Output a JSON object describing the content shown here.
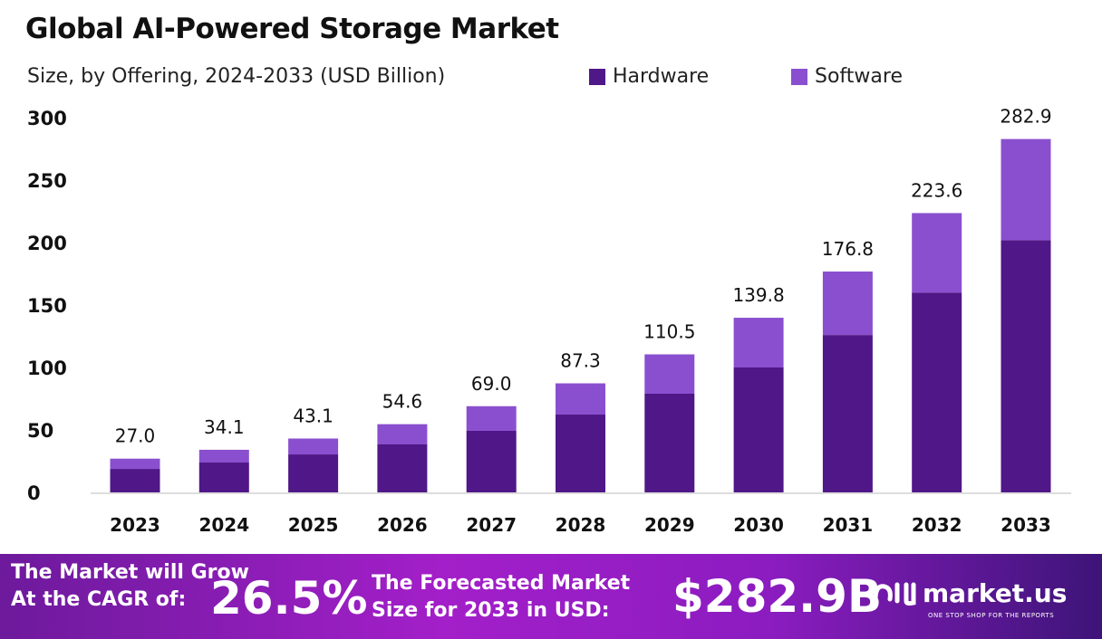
{
  "chart_data": {
    "type": "bar",
    "stacked": true,
    "title": "Global AI-Powered Storage Market",
    "subtitle": "Size, by Offering, 2024-2033 (USD Billion)",
    "categories": [
      "2023",
      "2024",
      "2025",
      "2026",
      "2027",
      "2028",
      "2029",
      "2030",
      "2031",
      "2032",
      "2033"
    ],
    "series": [
      {
        "name": "Hardware",
        "color": "#4f1787",
        "values": [
          18.8,
          23.9,
          30.4,
          38.4,
          49.3,
          62.3,
          79.0,
          100.0,
          126.0,
          160.0,
          202.0
        ]
      },
      {
        "name": "Software",
        "color": "#8a4fcf",
        "values": [
          8.2,
          10.2,
          12.7,
          16.2,
          19.7,
          25.0,
          31.5,
          39.8,
          50.8,
          63.6,
          80.9
        ]
      }
    ],
    "totals": [
      "27.0",
      "34.1",
      "43.1",
      "54.6",
      "69.0",
      "87.3",
      "110.5",
      "139.8",
      "176.8",
      "223.6",
      "282.9"
    ],
    "ylim": [
      0,
      300
    ],
    "yticks": [
      "0",
      "50",
      "100",
      "150",
      "200",
      "250",
      "300"
    ],
    "grid": false,
    "legend_position": "top-right"
  },
  "banner": {
    "cagr_label_1": "The Market will Grow",
    "cagr_label_2": "At the CAGR of:",
    "cagr_value": "26.5%",
    "forecast_label_1": "The Forecasted Market",
    "forecast_label_2": "Size for 2033 in USD:",
    "forecast_value": "$282.9B",
    "logo_text": "market.us",
    "logo_tagline": "ONE STOP SHOP FOR THE REPORTS"
  }
}
